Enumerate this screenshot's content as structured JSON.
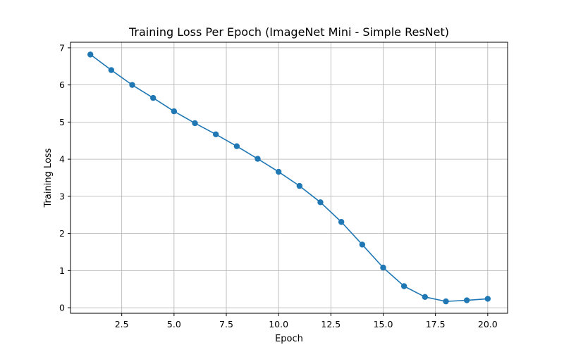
{
  "chart_data": {
    "type": "line",
    "title": "Training Loss Per Epoch (ImageNet Mini - Simple ResNet)",
    "xlabel": "Epoch",
    "ylabel": "Training Loss",
    "xlim": [
      0.05,
      20.95
    ],
    "ylim": [
      -0.15,
      7.15
    ],
    "xticks": [
      2.5,
      5.0,
      7.5,
      10.0,
      12.5,
      15.0,
      17.5,
      20.0
    ],
    "xtick_labels": [
      "2.5",
      "5.0",
      "7.5",
      "10.0",
      "12.5",
      "15.0",
      "17.5",
      "20.0"
    ],
    "yticks": [
      0,
      1,
      2,
      3,
      4,
      5,
      6,
      7
    ],
    "ytick_labels": [
      "0",
      "1",
      "2",
      "3",
      "4",
      "5",
      "6",
      "7"
    ],
    "grid": true,
    "legend": "none",
    "series": [
      {
        "color": "#1f77b4",
        "marker": "circle",
        "x": [
          1,
          2,
          3,
          4,
          5,
          6,
          7,
          8,
          9,
          10,
          11,
          12,
          13,
          14,
          15,
          16,
          17,
          18,
          19,
          20
        ],
        "y": [
          6.82,
          6.4,
          6.0,
          5.65,
          5.29,
          4.97,
          4.67,
          4.35,
          4.01,
          3.66,
          3.28,
          2.84,
          2.31,
          1.7,
          1.08,
          0.58,
          0.29,
          0.17,
          0.2,
          0.24
        ]
      }
    ]
  }
}
